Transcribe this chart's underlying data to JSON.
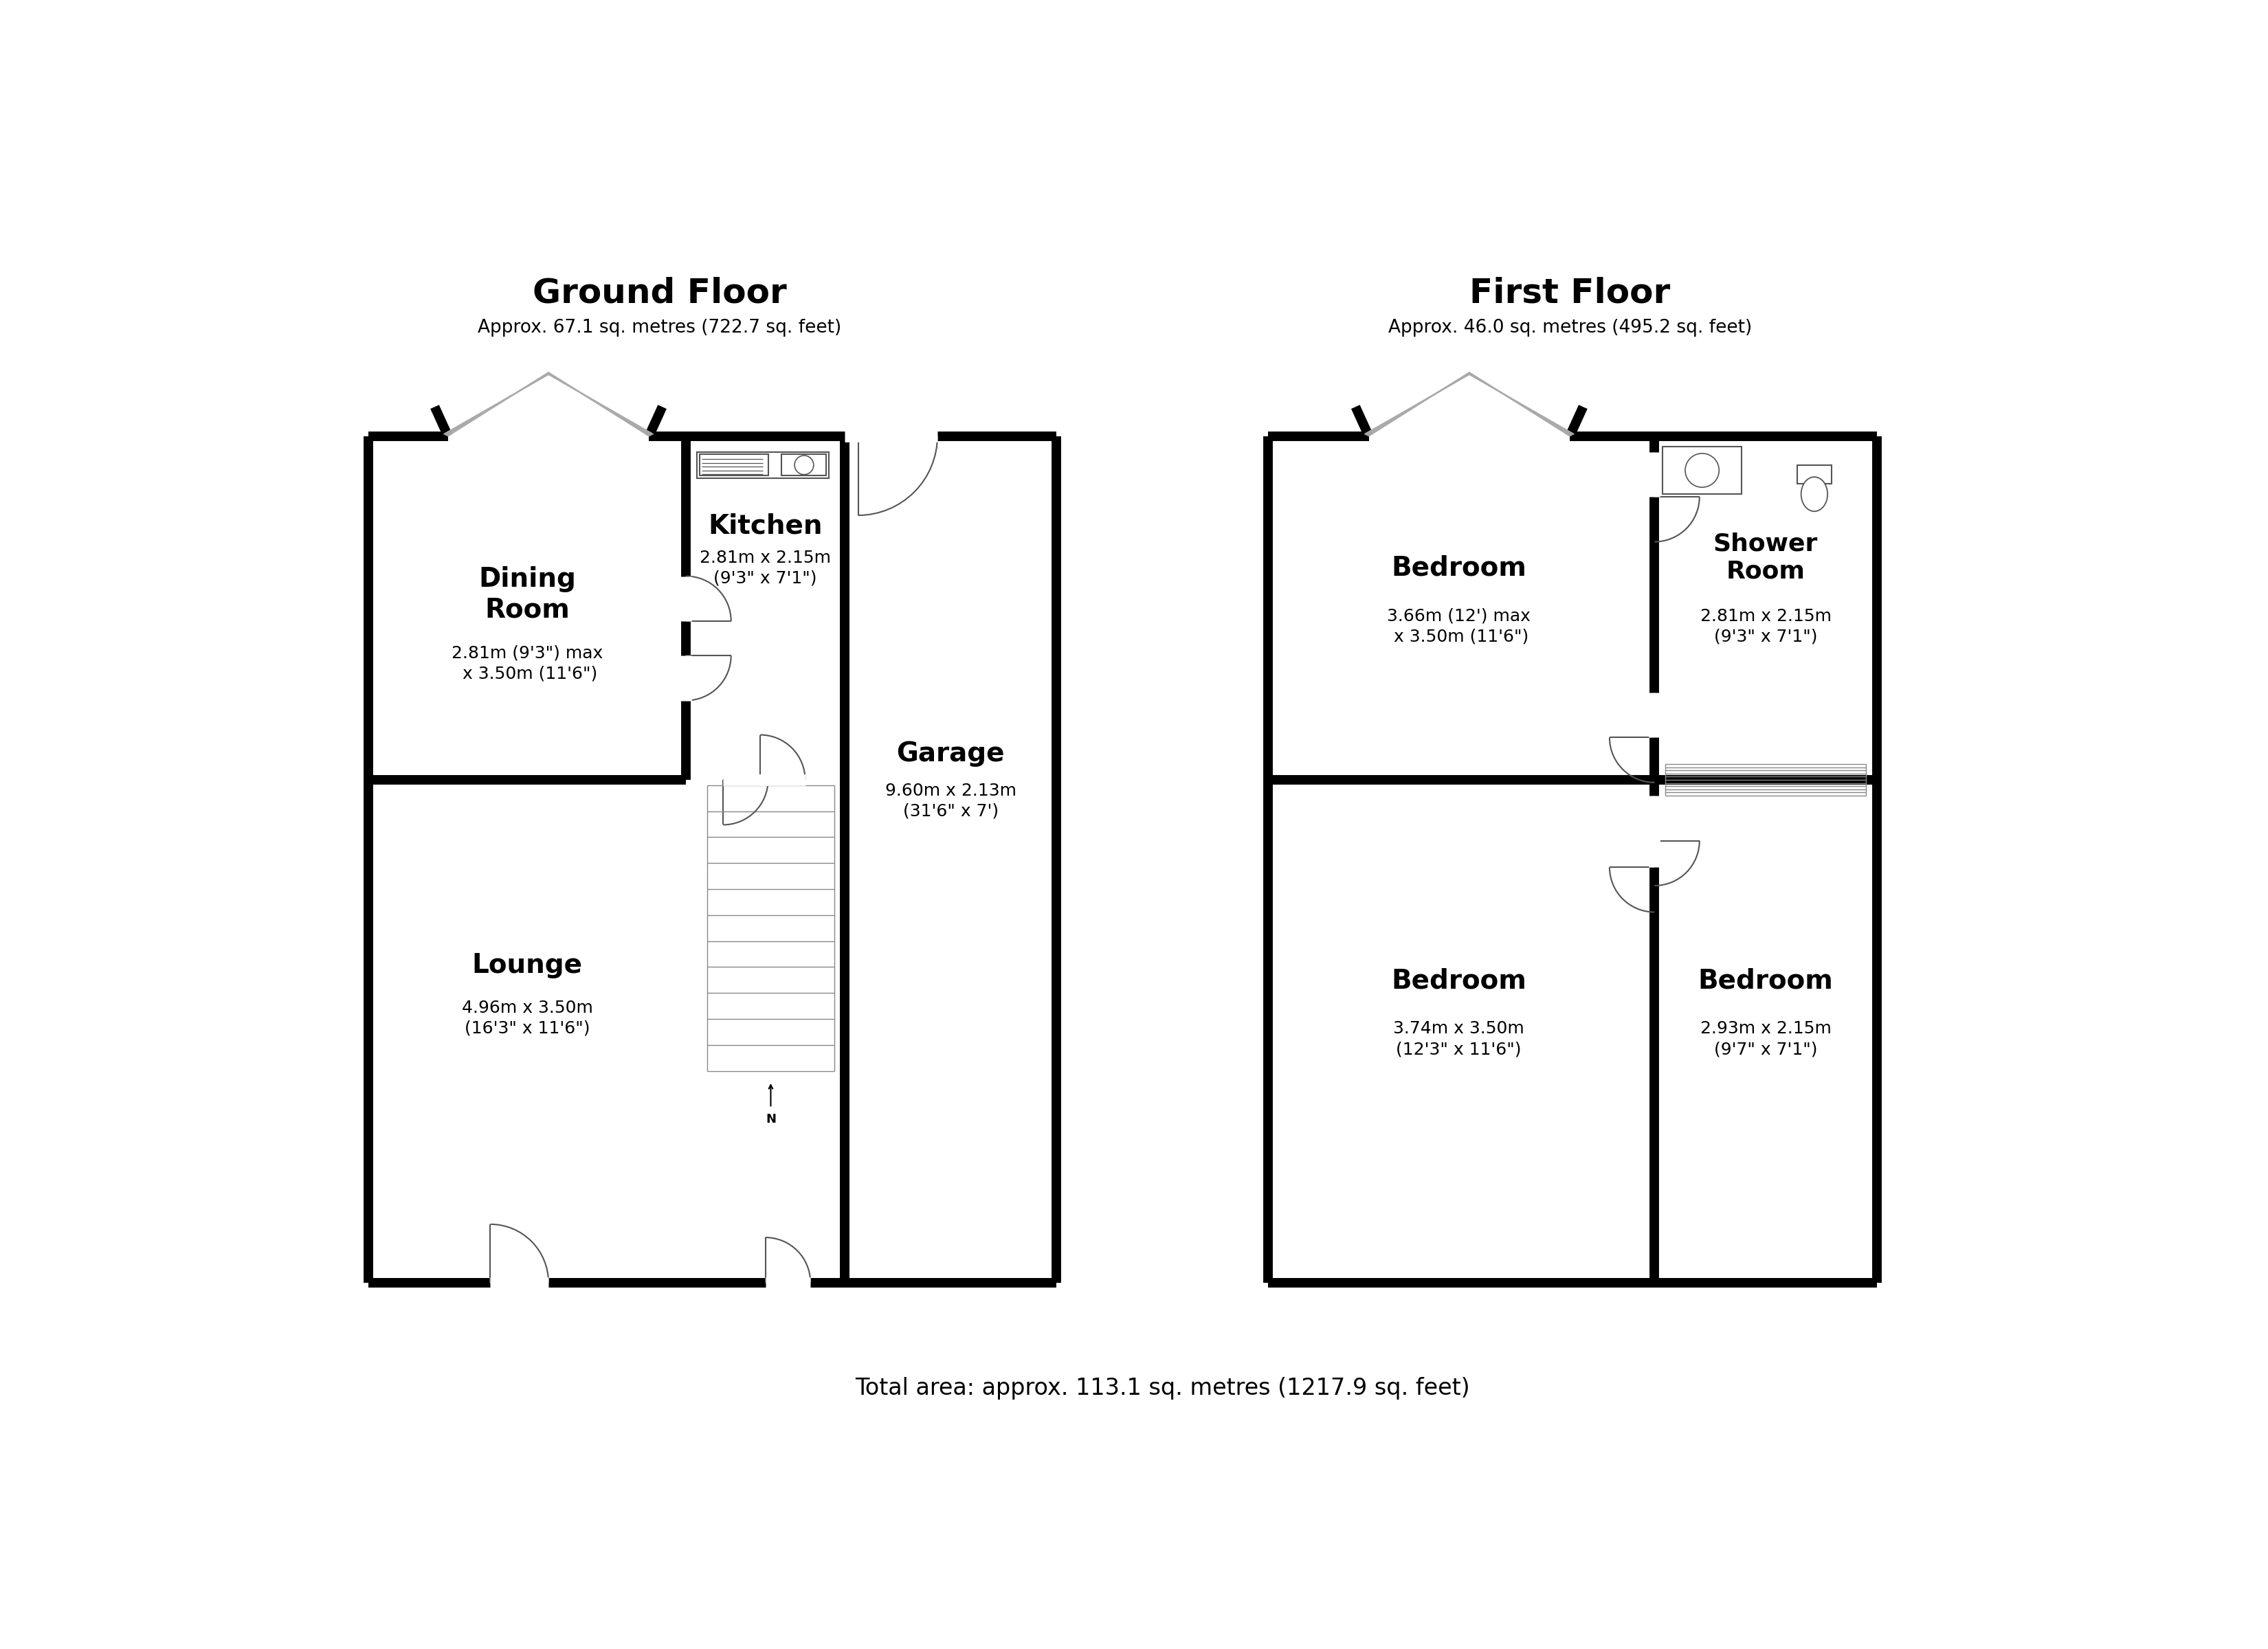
{
  "bg_color": "#ffffff",
  "wall_color": "#000000",
  "thin_color": "#555555",
  "lw_wall": 10,
  "lw_thin": 1.5,
  "title_gf": "Ground Floor",
  "subtitle_gf": "Approx. 67.1 sq. metres (722.7 sq. feet)",
  "title_ff": "First Floor",
  "subtitle_ff": "Approx. 46.0 sq. metres (495.2 sq. feet)",
  "total_area": "Total area: approx. 113.1 sq. metres (1217.9 sq. feet)",
  "label_dining": "Dining\nRoom",
  "sub_dining": "2.81m (9'3\") max\n x 3.50m (11'6\")",
  "label_kitchen": "Kitchen",
  "sub_kitchen": "2.81m x 2.15m\n(9'3\" x 7'1\")",
  "label_garage": "Garage",
  "sub_garage": "9.60m x 2.13m\n(31'6\" x 7')",
  "label_lounge": "Lounge",
  "sub_lounge": "4.96m x 3.50m\n(16'3\" x 11'6\")",
  "label_bed1": "Bedroom",
  "sub_bed1": "3.66m (12') max\n x 3.50m (11'6\")",
  "label_shower": "Shower\nRoom",
  "sub_shower": "2.81m x 2.15m\n(9'3\" x 7'1\")",
  "label_bed2": "Bedroom",
  "sub_bed2": "3.74m x 3.50m\n(12'3\" x 11'6\")",
  "label_bed3": "Bedroom",
  "sub_bed3": "2.93m x 2.15m\n(9'7\" x 7'1\")"
}
